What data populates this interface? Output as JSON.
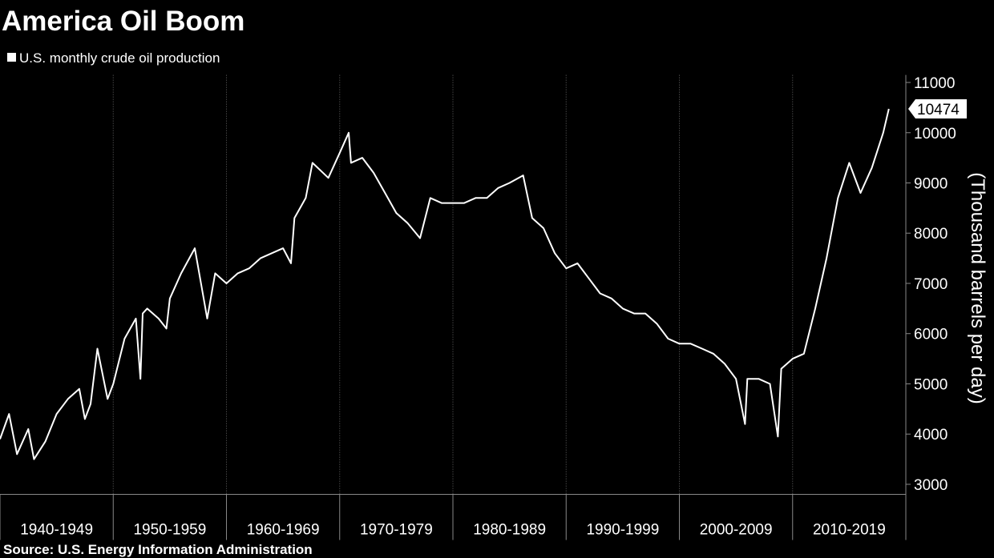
{
  "chart_data": {
    "type": "line",
    "title": "America Oil Boom",
    "source": "Source: U.S. Energy Information Administration",
    "y_label": "(Thousand barrels per day)",
    "categories": [
      "1940-1949",
      "1950-1959",
      "1960-1969",
      "1970-1979",
      "1980-1989",
      "1990-1999",
      "2000-2009",
      "2010-2019"
    ],
    "xticks": [
      1940,
      1950,
      1960,
      1970,
      1980,
      1990,
      2000,
      2010,
      2020
    ],
    "xlim": [
      1940,
      2020
    ],
    "ylim": [
      2800,
      11150
    ],
    "yticks": [
      3000,
      4000,
      5000,
      6000,
      7000,
      8000,
      9000,
      10000,
      11000
    ],
    "grid": true,
    "x": [
      1940,
      1940.8,
      1941.5,
      1942.5,
      1943,
      1944,
      1945,
      1946,
      1947,
      1947.5,
      1948,
      1948.6,
      1949.5,
      1950,
      1951,
      1952,
      1952.4,
      1952.6,
      1953,
      1954,
      1954.7,
      1955,
      1956,
      1957.2,
      1958.3,
      1959,
      1960,
      1961,
      1962,
      1963,
      1964,
      1965,
      1965.7,
      1966,
      1967,
      1967.6,
      1969,
      1970,
      1970.8,
      1971,
      1972,
      1973,
      1974,
      1975,
      1976,
      1977.1,
      1978,
      1979,
      1980,
      1981,
      1982,
      1983,
      1984,
      1985,
      1986.2,
      1987,
      1988,
      1989,
      1990,
      1991,
      1992,
      1993,
      1994,
      1995,
      1996,
      1997,
      1998,
      1999,
      2000,
      2001,
      2002,
      2003,
      2004,
      2005,
      2005.8,
      2006,
      2007,
      2008,
      2008.7,
      2009,
      2010,
      2011,
      2012,
      2013,
      2014,
      2015,
      2016,
      2017,
      2018,
      2018.5
    ],
    "series": [
      {
        "name": "U.S. monthly crude oil production",
        "color": "#ffffff",
        "values": [
          3900,
          4400,
          3600,
          4100,
          3500,
          3850,
          4400,
          4700,
          4900,
          4300,
          4600,
          5700,
          4700,
          5000,
          5900,
          6300,
          5100,
          6400,
          6500,
          6300,
          6100,
          6700,
          7200,
          7700,
          6300,
          7200,
          7000,
          7200,
          7300,
          7500,
          7600,
          7700,
          7400,
          8300,
          8700,
          9400,
          9100,
          9600,
          10000,
          9400,
          9500,
          9200,
          8800,
          8400,
          8200,
          7900,
          8700,
          8600,
          8600,
          8600,
          8700,
          8700,
          8900,
          9000,
          9150,
          8300,
          8100,
          7600,
          7300,
          7400,
          7100,
          6800,
          6700,
          6500,
          6400,
          6400,
          6200,
          5900,
          5800,
          5800,
          5700,
          5600,
          5400,
          5100,
          4200,
          5100,
          5100,
          5000,
          3950,
          5300,
          5500,
          5600,
          6500,
          7500,
          8700,
          9400,
          8800,
          9300,
          10000,
          10474
        ]
      }
    ]
  }
}
